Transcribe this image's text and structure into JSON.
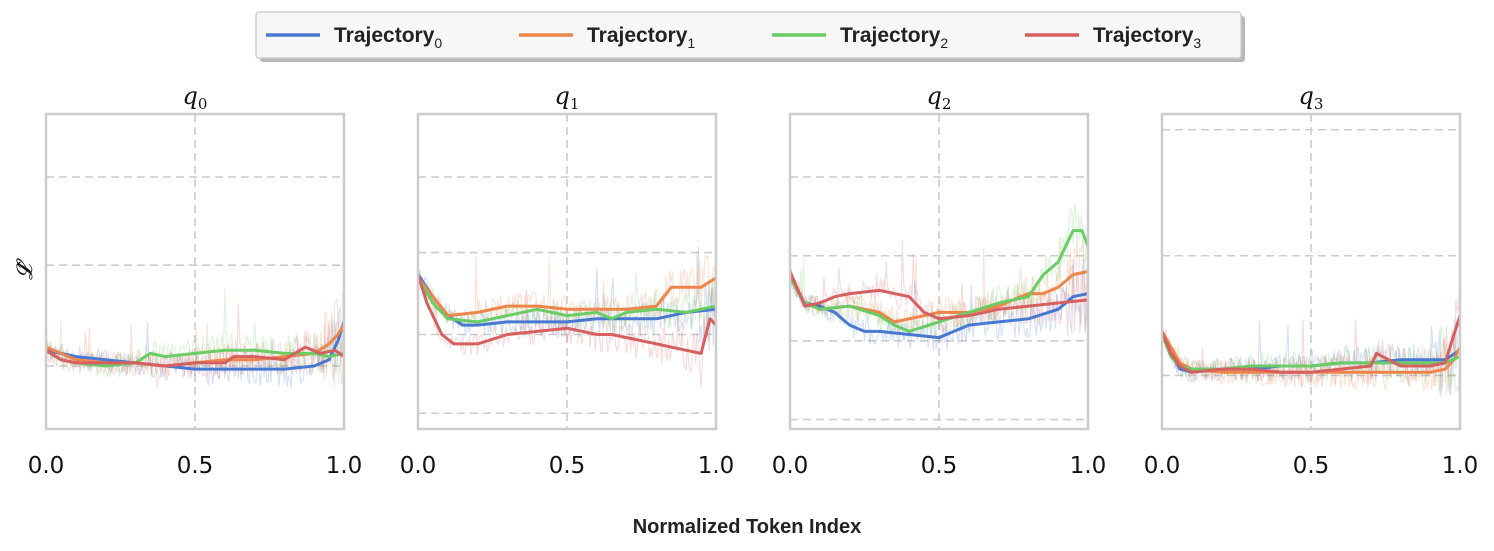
{
  "chart_data": {
    "type": "line",
    "xlabel": "Normalized Token Index",
    "ylabel": "𝓛̂",
    "legend": {
      "placement": "top-center",
      "entries": [
        {
          "base": "Trajectory",
          "sub": "0",
          "color": "#4878d0"
        },
        {
          "base": "Trajectory",
          "sub": "1",
          "color": "#ee854a"
        },
        {
          "base": "Trajectory",
          "sub": "2",
          "color": "#6acc64"
        },
        {
          "base": "Trajectory",
          "sub": "3",
          "color": "#d65f5f"
        }
      ]
    },
    "xticks": [
      "0.0",
      "0.5",
      "1.0"
    ],
    "xlim": [
      0,
      1
    ],
    "ylim": [
      0,
      1
    ],
    "grid": true,
    "panels": [
      {
        "title_base": "q",
        "title_sub": "0",
        "y_gridlines": [
          0.2,
          0.52,
          0.8
        ],
        "series": [
          {
            "name": "Trajectory0",
            "x": [
              0,
              0.05,
              0.1,
              0.2,
              0.3,
              0.4,
              0.5,
              0.6,
              0.7,
              0.8,
              0.9,
              0.95,
              0.98,
              1.0
            ],
            "y": [
              0.25,
              0.24,
              0.23,
              0.22,
              0.21,
              0.2,
              0.19,
              0.19,
              0.19,
              0.19,
              0.2,
              0.22,
              0.28,
              0.34
            ]
          },
          {
            "name": "Trajectory1",
            "x": [
              0,
              0.05,
              0.1,
              0.2,
              0.3,
              0.4,
              0.5,
              0.6,
              0.7,
              0.8,
              0.9,
              0.95,
              0.98,
              1.0
            ],
            "y": [
              0.26,
              0.24,
              0.22,
              0.21,
              0.21,
              0.2,
              0.21,
              0.22,
              0.22,
              0.23,
              0.24,
              0.27,
              0.3,
              0.33
            ]
          },
          {
            "name": "Trajectory2",
            "x": [
              0,
              0.05,
              0.1,
              0.2,
              0.3,
              0.35,
              0.4,
              0.5,
              0.6,
              0.7,
              0.8,
              0.9,
              0.95,
              1.0
            ],
            "y": [
              0.25,
              0.22,
              0.21,
              0.2,
              0.21,
              0.24,
              0.23,
              0.24,
              0.25,
              0.25,
              0.24,
              0.24,
              0.23,
              0.24
            ]
          },
          {
            "name": "Trajectory3",
            "x": [
              0,
              0.05,
              0.1,
              0.2,
              0.3,
              0.4,
              0.5,
              0.6,
              0.63,
              0.7,
              0.8,
              0.87,
              0.92,
              0.97,
              1.0
            ],
            "y": [
              0.25,
              0.22,
              0.21,
              0.21,
              0.21,
              0.2,
              0.21,
              0.21,
              0.23,
              0.23,
              0.22,
              0.26,
              0.24,
              0.25,
              0.23
            ]
          }
        ]
      },
      {
        "title_base": "q",
        "title_sub": "1",
        "y_gridlines": [
          0.05,
          0.3,
          0.56,
          0.8,
          1.06
        ],
        "series": [
          {
            "name": "Trajectory0",
            "x": [
              0,
              0.05,
              0.1,
              0.15,
              0.2,
              0.3,
              0.4,
              0.5,
              0.6,
              0.7,
              0.8,
              0.9,
              1.0
            ],
            "y": [
              0.49,
              0.42,
              0.36,
              0.33,
              0.33,
              0.34,
              0.34,
              0.34,
              0.35,
              0.35,
              0.35,
              0.37,
              0.38
            ]
          },
          {
            "name": "Trajectory1",
            "x": [
              0,
              0.05,
              0.1,
              0.2,
              0.3,
              0.4,
              0.5,
              0.6,
              0.7,
              0.8,
              0.85,
              0.9,
              0.95,
              1.0
            ],
            "y": [
              0.48,
              0.42,
              0.36,
              0.37,
              0.39,
              0.39,
              0.38,
              0.38,
              0.38,
              0.39,
              0.45,
              0.45,
              0.45,
              0.48
            ]
          },
          {
            "name": "Trajectory2",
            "x": [
              0,
              0.05,
              0.1,
              0.2,
              0.3,
              0.4,
              0.5,
              0.6,
              0.65,
              0.7,
              0.8,
              0.9,
              1.0
            ],
            "y": [
              0.48,
              0.4,
              0.35,
              0.34,
              0.36,
              0.38,
              0.36,
              0.37,
              0.35,
              0.37,
              0.38,
              0.37,
              0.39
            ]
          },
          {
            "name": "Trajectory3",
            "x": [
              0,
              0.03,
              0.08,
              0.12,
              0.2,
              0.3,
              0.4,
              0.5,
              0.6,
              0.65,
              0.7,
              0.8,
              0.9,
              0.95,
              0.98,
              1.0
            ],
            "y": [
              0.49,
              0.4,
              0.3,
              0.27,
              0.27,
              0.3,
              0.31,
              0.32,
              0.3,
              0.3,
              0.29,
              0.27,
              0.25,
              0.24,
              0.35,
              0.33
            ]
          }
        ]
      },
      {
        "title_base": "q",
        "title_sub": "2",
        "y_gridlines": [
          0.03,
          0.28,
          0.55,
          0.8,
          1.06
        ],
        "series": [
          {
            "name": "Trajectory0",
            "x": [
              0,
              0.05,
              0.1,
              0.15,
              0.2,
              0.25,
              0.3,
              0.4,
              0.5,
              0.6,
              0.7,
              0.8,
              0.9,
              0.95,
              1.0
            ],
            "y": [
              0.48,
              0.4,
              0.39,
              0.37,
              0.33,
              0.31,
              0.31,
              0.3,
              0.29,
              0.33,
              0.34,
              0.35,
              0.38,
              0.42,
              0.43
            ]
          },
          {
            "name": "Trajectory1",
            "x": [
              0,
              0.05,
              0.1,
              0.2,
              0.3,
              0.35,
              0.4,
              0.5,
              0.6,
              0.7,
              0.8,
              0.85,
              0.9,
              0.95,
              1.0
            ],
            "y": [
              0.48,
              0.4,
              0.38,
              0.39,
              0.37,
              0.34,
              0.35,
              0.37,
              0.37,
              0.39,
              0.43,
              0.43,
              0.45,
              0.49,
              0.5
            ]
          },
          {
            "name": "Trajectory2",
            "x": [
              0,
              0.05,
              0.1,
              0.2,
              0.3,
              0.35,
              0.4,
              0.5,
              0.6,
              0.7,
              0.8,
              0.85,
              0.9,
              0.95,
              0.98,
              1.0
            ],
            "y": [
              0.48,
              0.4,
              0.38,
              0.39,
              0.36,
              0.33,
              0.31,
              0.34,
              0.37,
              0.4,
              0.42,
              0.49,
              0.53,
              0.63,
              0.63,
              0.58
            ]
          },
          {
            "name": "Trajectory3",
            "x": [
              0,
              0.05,
              0.1,
              0.15,
              0.2,
              0.3,
              0.4,
              0.45,
              0.5,
              0.6,
              0.7,
              0.8,
              0.9,
              1.0
            ],
            "y": [
              0.5,
              0.39,
              0.4,
              0.42,
              0.43,
              0.44,
              0.42,
              0.37,
              0.35,
              0.36,
              0.38,
              0.39,
              0.4,
              0.41
            ]
          }
        ]
      },
      {
        "title_base": "q",
        "title_sub": "3",
        "y_gridlines": [
          0.17,
          0.55,
          0.95
        ],
        "series": [
          {
            "name": "Trajectory0",
            "x": [
              0,
              0.03,
              0.06,
              0.1,
              0.2,
              0.3,
              0.4,
              0.5,
              0.6,
              0.7,
              0.8,
              0.9,
              0.95,
              1.0
            ],
            "y": [
              0.3,
              0.24,
              0.19,
              0.18,
              0.19,
              0.19,
              0.2,
              0.2,
              0.21,
              0.21,
              0.22,
              0.22,
              0.22,
              0.25
            ]
          },
          {
            "name": "Trajectory1",
            "x": [
              0,
              0.03,
              0.06,
              0.1,
              0.2,
              0.3,
              0.4,
              0.5,
              0.6,
              0.7,
              0.8,
              0.9,
              0.95,
              0.98,
              1.0
            ],
            "y": [
              0.31,
              0.26,
              0.21,
              0.19,
              0.18,
              0.18,
              0.18,
              0.18,
              0.18,
              0.18,
              0.18,
              0.18,
              0.19,
              0.22,
              0.26
            ]
          },
          {
            "name": "Trajectory2",
            "x": [
              0,
              0.03,
              0.06,
              0.1,
              0.2,
              0.3,
              0.4,
              0.5,
              0.6,
              0.7,
              0.8,
              0.9,
              0.95,
              1.0
            ],
            "y": [
              0.3,
              0.23,
              0.2,
              0.19,
              0.19,
              0.2,
              0.2,
              0.2,
              0.21,
              0.21,
              0.21,
              0.21,
              0.21,
              0.23
            ]
          },
          {
            "name": "Trajectory3",
            "x": [
              0,
              0.03,
              0.06,
              0.1,
              0.2,
              0.3,
              0.4,
              0.5,
              0.6,
              0.7,
              0.72,
              0.8,
              0.9,
              0.95,
              0.98,
              1.0
            ],
            "y": [
              0.31,
              0.24,
              0.2,
              0.18,
              0.19,
              0.19,
              0.18,
              0.18,
              0.19,
              0.2,
              0.24,
              0.2,
              0.2,
              0.21,
              0.3,
              0.36
            ]
          }
        ]
      }
    ]
  }
}
